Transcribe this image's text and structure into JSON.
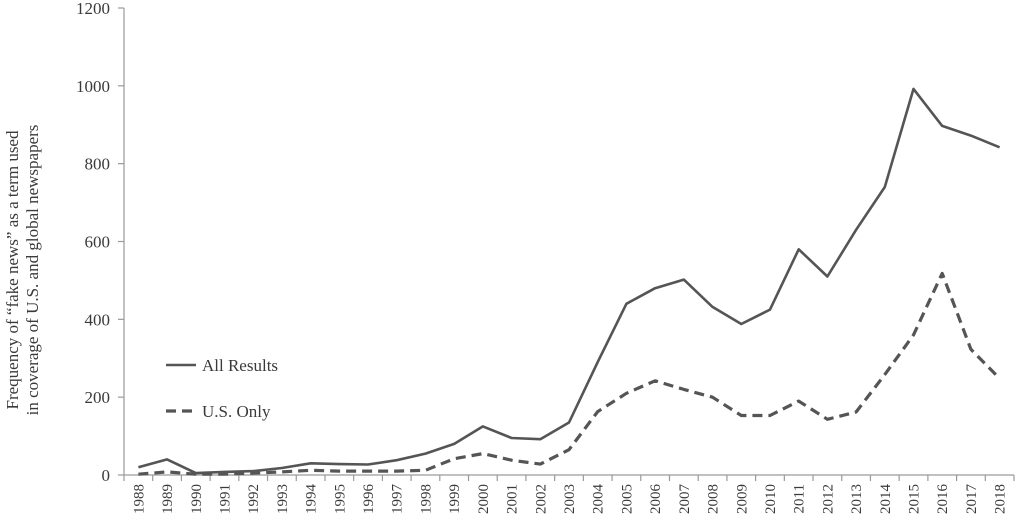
{
  "chart_data": {
    "type": "line",
    "title": "",
    "xlabel": "",
    "ylabel_lines": [
      "Frequency of “fake news” as a term  used",
      "in coverage of U.S. and global newspapers"
    ],
    "ylim": [
      0,
      1200
    ],
    "yticks": [
      0,
      200,
      400,
      600,
      800,
      1000,
      1200
    ],
    "grid": false,
    "legend_position": "left-middle",
    "categories": [
      "1988",
      "1989",
      "1990",
      "1991",
      "1992",
      "1993",
      "1994",
      "1995",
      "1996",
      "1997",
      "1998",
      "1999",
      "2000",
      "2001",
      "2002",
      "2003",
      "2004",
      "2005",
      "2006",
      "2007",
      "2008",
      "2009",
      "2010",
      "2011",
      "2012",
      "2013",
      "2014",
      "2015",
      "2016",
      "2017",
      "2018"
    ],
    "series": [
      {
        "name": "All Results",
        "style": "solid",
        "color": "#555555",
        "values": [
          20,
          40,
          5,
          8,
          10,
          18,
          30,
          28,
          27,
          38,
          55,
          80,
          125,
          95,
          92,
          135,
          290,
          440,
          480,
          502,
          432,
          388,
          425,
          580,
          510,
          630,
          740,
          992,
          897,
          872,
          842
        ]
      },
      {
        "name": "U.S. Only",
        "style": "dashed",
        "color": "#555555",
        "values": [
          2,
          8,
          2,
          2,
          5,
          8,
          12,
          10,
          10,
          10,
          12,
          42,
          55,
          38,
          28,
          65,
          163,
          210,
          242,
          220,
          200,
          153,
          153,
          190,
          143,
          162,
          258,
          360,
          518,
          323,
          248
        ]
      }
    ]
  }
}
